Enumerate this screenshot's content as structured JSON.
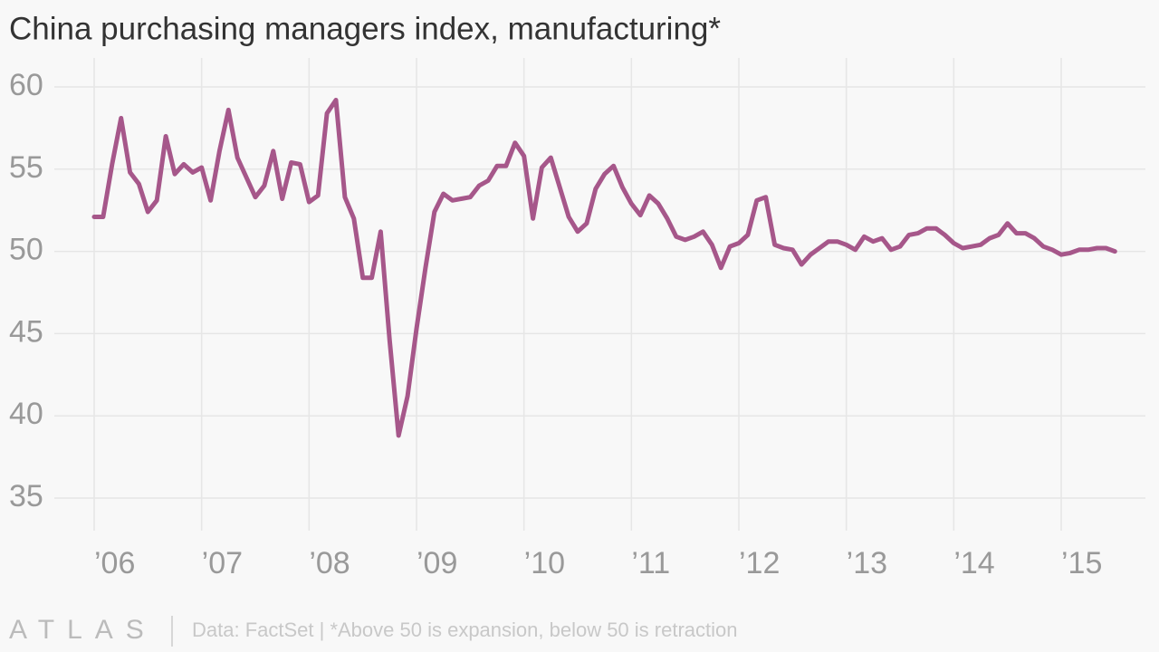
{
  "chart_data": {
    "type": "line",
    "title": "China purchasing managers index, manufacturing*",
    "source": "Data: FactSet | *Above 50 is expansion, below 50 is retraction",
    "logo": "ATLAS",
    "categories": [
      "’06",
      null,
      null,
      null,
      null,
      null,
      null,
      null,
      null,
      null,
      null,
      null,
      "’07",
      null,
      null,
      null,
      null,
      null,
      null,
      null,
      null,
      null,
      null,
      null,
      "’08",
      null,
      null,
      null,
      null,
      null,
      null,
      null,
      null,
      null,
      null,
      null,
      "’09",
      null,
      null,
      null,
      null,
      null,
      null,
      null,
      null,
      null,
      null,
      null,
      "’10",
      null,
      null,
      null,
      null,
      null,
      null,
      null,
      null,
      null,
      null,
      null,
      "’11",
      null,
      null,
      null,
      null,
      null,
      null,
      null,
      null,
      null,
      null,
      null,
      "’12",
      null,
      null,
      null,
      null,
      null,
      null,
      null,
      null,
      null,
      null,
      null,
      "’13",
      null,
      null,
      null,
      null,
      null,
      null,
      null,
      null,
      null,
      null,
      null,
      "’14",
      null,
      null,
      null,
      null,
      null,
      null,
      null,
      null,
      null,
      null,
      null,
      "’15",
      null,
      null,
      null,
      null,
      null,
      null
    ],
    "series": [
      {
        "name": "PMI",
        "color": "#a6578a",
        "values": [
          52.1,
          52.1,
          55.3,
          58.1,
          54.8,
          54.1,
          52.4,
          53.1,
          57.0,
          54.7,
          55.3,
          54.8,
          55.1,
          53.1,
          56.1,
          58.6,
          55.7,
          54.5,
          53.3,
          54.0,
          56.1,
          53.2,
          55.4,
          55.3,
          53.0,
          53.4,
          58.4,
          59.2,
          53.3,
          52.0,
          48.4,
          48.4,
          51.2,
          44.6,
          38.8,
          41.2,
          45.3,
          49.0,
          52.4,
          53.5,
          53.1,
          53.2,
          53.3,
          54.0,
          54.3,
          55.2,
          55.2,
          56.6,
          55.8,
          52.0,
          55.1,
          55.7,
          53.9,
          52.1,
          51.2,
          51.7,
          53.8,
          54.7,
          55.2,
          53.9,
          52.9,
          52.2,
          53.4,
          52.9,
          52.0,
          50.9,
          50.7,
          50.9,
          51.2,
          50.4,
          49.0,
          50.3,
          50.5,
          51.0,
          53.1,
          53.3,
          50.4,
          50.2,
          50.1,
          49.2,
          49.8,
          50.2,
          50.6,
          50.6,
          50.4,
          50.1,
          50.9,
          50.6,
          50.8,
          50.1,
          50.3,
          51.0,
          51.1,
          51.4,
          51.4,
          51.0,
          50.5,
          50.2,
          50.3,
          50.4,
          50.8,
          51.0,
          51.7,
          51.1,
          51.1,
          50.8,
          50.3,
          50.1,
          49.8,
          49.9,
          50.1,
          50.1,
          50.2,
          50.2,
          50.0
        ]
      }
    ],
    "ylim": [
      35,
      60
    ],
    "yticks": [
      35,
      40,
      45,
      50,
      55,
      60
    ],
    "grid": true
  }
}
